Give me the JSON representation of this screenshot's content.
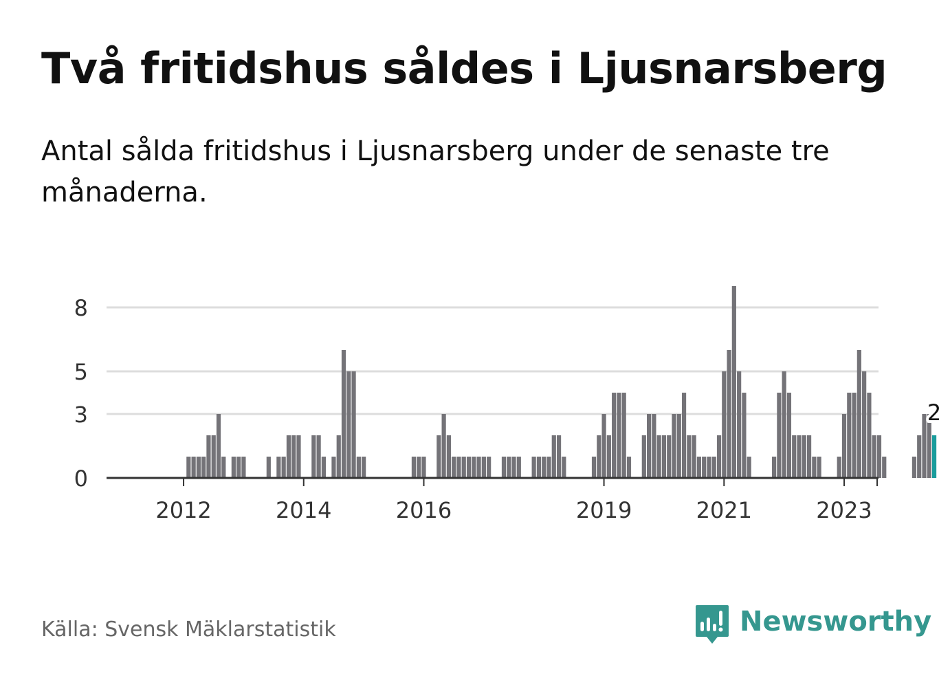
{
  "header": {
    "title": "Två fritidshus såldes i Ljusnarsberg",
    "subtitle": "Antal sålda fritidshus i Ljusnarsberg under de senaste tre månaderna."
  },
  "footer": {
    "source": "Källa: Svensk Mäklarstatistik",
    "brand": "Newsworthy"
  },
  "colors": {
    "bar": "#747378",
    "highlight": "#1a9c9c",
    "grid": "#dddddd",
    "axis": "#333333",
    "brand": "#35978f"
  },
  "chart_data": {
    "type": "bar",
    "title": "Två fritidshus såldes i Ljusnarsberg",
    "xlabel": "",
    "ylabel": "",
    "ylim": [
      0,
      9
    ],
    "grid": true,
    "yticks": [
      0,
      3,
      5,
      8
    ],
    "ytick_labels": [
      "0",
      "3",
      "5",
      "8"
    ],
    "xtick_labels": [
      "2012",
      "2014",
      "2016",
      "2019",
      "2021",
      "2023"
    ],
    "xtick_at_index": [
      7,
      31,
      55,
      91,
      115,
      139
    ],
    "highlight_label": "2",
    "series": [
      {
        "name": "Antal sålda fritidshus",
        "values": [
          0,
          0,
          0,
          0,
          0,
          0,
          0,
          0,
          1,
          1,
          1,
          1,
          2,
          2,
          3,
          1,
          0,
          1,
          1,
          1,
          0,
          0,
          0,
          0,
          1,
          0,
          1,
          1,
          2,
          2,
          2,
          0,
          0,
          2,
          2,
          1,
          0,
          1,
          2,
          6,
          5,
          5,
          1,
          1,
          0,
          0,
          0,
          0,
          0,
          0,
          0,
          0,
          0,
          1,
          1,
          1,
          0,
          0,
          2,
          3,
          2,
          1,
          1,
          1,
          1,
          1,
          1,
          1,
          1,
          0,
          0,
          1,
          1,
          1,
          1,
          0,
          0,
          1,
          1,
          1,
          1,
          2,
          2,
          1,
          0,
          0,
          0,
          0,
          0,
          1,
          2,
          3,
          2,
          4,
          4,
          4,
          1,
          0,
          0,
          2,
          3,
          3,
          2,
          2,
          2,
          3,
          3,
          4,
          2,
          2,
          1,
          1,
          1,
          1,
          2,
          5,
          6,
          9,
          5,
          4,
          1,
          0,
          0,
          0,
          0,
          1,
          4,
          5,
          4,
          2,
          2,
          2,
          2,
          1,
          1,
          0,
          0,
          0,
          1,
          3,
          4,
          4,
          6,
          5,
          4,
          2,
          2,
          1,
          0,
          0,
          0,
          0,
          0,
          1,
          2,
          3,
          3,
          2
        ]
      }
    ]
  }
}
